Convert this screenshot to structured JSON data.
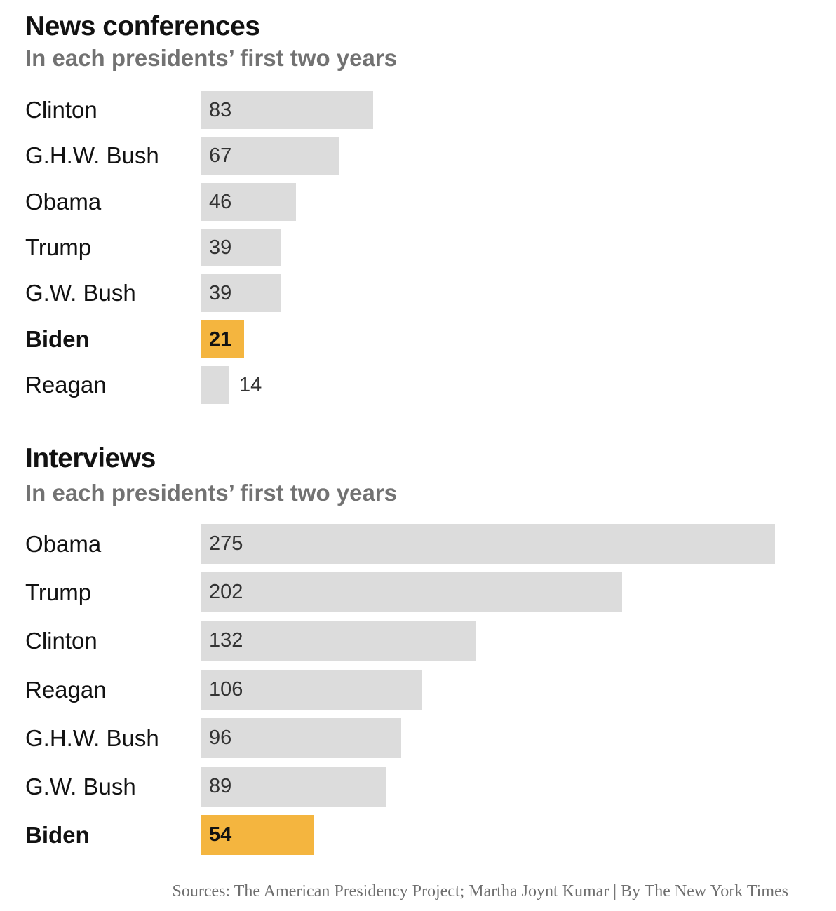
{
  "chart_data": [
    {
      "type": "bar",
      "orientation": "horizontal",
      "title": "News conferences",
      "subtitle": "In each presidents’ first two years",
      "categories": [
        "Clinton",
        "G.H.W. Bush",
        "Obama",
        "Trump",
        "G.W. Bush",
        "Biden",
        "Reagan"
      ],
      "values": [
        83,
        67,
        46,
        39,
        39,
        21,
        14
      ],
      "value_labels": [
        "83",
        "67",
        "46",
        "39",
        "39",
        "21",
        "14"
      ],
      "highlight": "Biden",
      "colors": {
        "default": "#dcdcdc",
        "highlight": "#f4b53f"
      },
      "grid": false,
      "legend": "none"
    },
    {
      "type": "bar",
      "orientation": "horizontal",
      "title": "Interviews",
      "subtitle": "In each presidents’ first two years",
      "categories": [
        "Obama",
        "Trump",
        "Clinton",
        "Reagan",
        "G.H.W. Bush",
        "G.W. Bush",
        "Biden"
      ],
      "values": [
        275,
        202,
        132,
        106,
        96,
        89,
        54
      ],
      "value_labels": [
        "275",
        "202",
        "132",
        "106",
        "96",
        "89",
        "54"
      ],
      "highlight": "Biden",
      "colors": {
        "default": "#dcdcdc",
        "highlight": "#f4b53f"
      },
      "grid": false,
      "legend": "none"
    }
  ],
  "source": "Sources: The American Presidency Project; Martha Joynt Kumar | By The New York Times"
}
